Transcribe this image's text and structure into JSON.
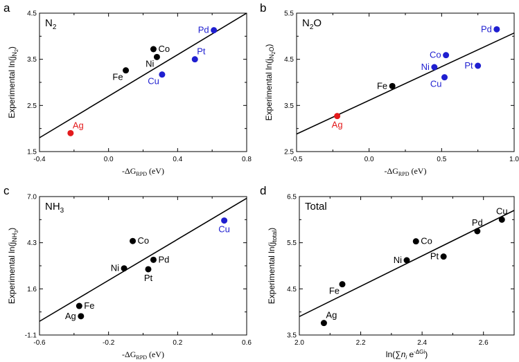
{
  "chart_data": [
    {
      "type": "scatter",
      "panel_letter": "a",
      "title_main": "N",
      "title_sub": "2",
      "xlabel_prefix": "-ΔG",
      "xlabel_sub": "RPD",
      "xlabel_suffix": " (eV)",
      "ylabel_prefix": "Experimental ln(j",
      "ylabel_sub": "N",
      "ylabel_subsub": "2",
      "ylabel_suffix": ")",
      "xlim": [
        -0.4,
        0.8
      ],
      "ylim": [
        1.5,
        4.5
      ],
      "xticks": [
        -0.4,
        0.0,
        0.4,
        0.8
      ],
      "xtick_labels": [
        "-0.4",
        "0.0",
        "0.4",
        "0.8"
      ],
      "yticks": [
        1.5,
        2.5,
        3.5,
        4.5
      ],
      "ytick_labels": [
        "1.5",
        "2.5",
        "3.5",
        "4.5"
      ],
      "fit_line": [
        [
          -0.4,
          1.8
        ],
        [
          0.8,
          4.5
        ]
      ],
      "points": [
        {
          "label": "Ag",
          "x": -0.22,
          "y": 1.9,
          "color": "#e31a1c",
          "label_pos": "above-right"
        },
        {
          "label": "Fe",
          "x": 0.1,
          "y": 3.26,
          "color": "#000000",
          "label_pos": "below-left"
        },
        {
          "label": "Co",
          "x": 0.26,
          "y": 3.72,
          "color": "#000000",
          "label_pos": "right"
        },
        {
          "label": "Ni",
          "x": 0.28,
          "y": 3.55,
          "color": "#000000",
          "label_pos": "below-left"
        },
        {
          "label": "Cu",
          "x": 0.31,
          "y": 3.17,
          "color": "#1f1fd0",
          "label_pos": "below-left"
        },
        {
          "label": "Pt",
          "x": 0.5,
          "y": 3.5,
          "color": "#1f1fd0",
          "label_pos": "above-right"
        },
        {
          "label": "Pd",
          "x": 0.61,
          "y": 4.13,
          "color": "#1f1fd0",
          "label_pos": "left"
        }
      ]
    },
    {
      "type": "scatter",
      "panel_letter": "b",
      "title_main": "N",
      "title_sub": "2",
      "title_after": "O",
      "xlabel_prefix": "-ΔG",
      "xlabel_sub": "RPD",
      "xlabel_suffix": " (eV)",
      "ylabel_prefix": "Experimental ln(j",
      "ylabel_sub": "N",
      "ylabel_subsub": "2",
      "ylabel_subafter": "O",
      "ylabel_suffix": ")",
      "xlim": [
        -0.5,
        1.0
      ],
      "ylim": [
        2.5,
        5.5
      ],
      "xticks": [
        -0.5,
        0.0,
        0.5,
        1.0
      ],
      "xtick_labels": [
        "-0.5",
        "0.0",
        "0.5",
        "1.0"
      ],
      "yticks": [
        2.5,
        3.5,
        4.5,
        5.5
      ],
      "ytick_labels": [
        "2.5",
        "3.5",
        "4.5",
        "5.5"
      ],
      "fit_line": [
        [
          -0.5,
          2.88
        ],
        [
          1.0,
          5.07
        ]
      ],
      "points": [
        {
          "label": "Ag",
          "x": -0.22,
          "y": 3.27,
          "color": "#e31a1c",
          "label_pos": "below"
        },
        {
          "label": "Fe",
          "x": 0.16,
          "y": 3.92,
          "color": "#000000",
          "label_pos": "left"
        },
        {
          "label": "Ni",
          "x": 0.45,
          "y": 4.33,
          "color": "#1f1fd0",
          "label_pos": "left"
        },
        {
          "label": "Co",
          "x": 0.53,
          "y": 4.59,
          "color": "#1f1fd0",
          "label_pos": "left"
        },
        {
          "label": "Cu",
          "x": 0.52,
          "y": 4.11,
          "color": "#1f1fd0",
          "label_pos": "below-left"
        },
        {
          "label": "Pt",
          "x": 0.75,
          "y": 4.36,
          "color": "#1f1fd0",
          "label_pos": "left"
        },
        {
          "label": "Pd",
          "x": 0.88,
          "y": 5.15,
          "color": "#1f1fd0",
          "label_pos": "left"
        }
      ]
    },
    {
      "type": "scatter",
      "panel_letter": "c",
      "title_main": "NH",
      "title_sub": "3",
      "xlabel_prefix": "-ΔG",
      "xlabel_sub": "RPD",
      "xlabel_suffix": " (eV)",
      "ylabel_prefix": "Experimental ln(j",
      "ylabel_sub": "NH",
      "ylabel_subsub": "3",
      "ylabel_suffix": ")",
      "xlim": [
        -0.6,
        0.6
      ],
      "ylim": [
        -1.1,
        7.0
      ],
      "xticks": [
        -0.6,
        -0.2,
        0.2,
        0.6
      ],
      "xtick_labels": [
        "-0.6",
        "-0.2",
        "0.2",
        "0.6"
      ],
      "yticks": [
        -1.1,
        1.6,
        4.3,
        7.0
      ],
      "ytick_labels": [
        "-1.1",
        "1.6",
        "4.3",
        "7.0"
      ],
      "fit_line": [
        [
          -0.6,
          -0.3
        ],
        [
          0.6,
          6.9
        ]
      ],
      "points": [
        {
          "label": "Ag",
          "x": -0.36,
          "y": 0.0,
          "color": "#000000",
          "label_pos": "left"
        },
        {
          "label": "Fe",
          "x": -0.37,
          "y": 0.6,
          "color": "#000000",
          "label_pos": "right"
        },
        {
          "label": "Ni",
          "x": -0.11,
          "y": 2.8,
          "color": "#000000",
          "label_pos": "left"
        },
        {
          "label": "Co",
          "x": -0.06,
          "y": 4.4,
          "color": "#000000",
          "label_pos": "right"
        },
        {
          "label": "Pt",
          "x": 0.03,
          "y": 2.75,
          "color": "#000000",
          "label_pos": "below"
        },
        {
          "label": "Pd",
          "x": 0.06,
          "y": 3.3,
          "color": "#000000",
          "label_pos": "right"
        },
        {
          "label": "Cu",
          "x": 0.47,
          "y": 5.6,
          "color": "#1f1fd0",
          "label_pos": "below"
        }
      ]
    },
    {
      "type": "scatter",
      "panel_letter": "d",
      "title_main": "Total",
      "xlabel_prefix": "ln(∑",
      "xlabel_n": "n",
      "xlabel_i": "i",
      "xlabel_e": " e",
      "xlabel_sup": "-ΔGi",
      "xlabel_suffix": ")",
      "ylabel_prefix": "Experimental ln(j",
      "ylabel_sub": "total",
      "ylabel_suffix": ")",
      "xlim": [
        2.0,
        2.7
      ],
      "ylim": [
        3.5,
        6.5
      ],
      "xticks": [
        2.0,
        2.2,
        2.4,
        2.6
      ],
      "xtick_labels": [
        "2.0",
        "2.2",
        "2.4",
        "2.6"
      ],
      "yticks": [
        3.5,
        4.5,
        5.5,
        6.5
      ],
      "ytick_labels": [
        "3.5",
        "4.5",
        "5.5",
        "6.5"
      ],
      "fit_line": [
        [
          2.0,
          3.9
        ],
        [
          2.7,
          6.2
        ]
      ],
      "points": [
        {
          "label": "Ag",
          "x": 2.08,
          "y": 3.76,
          "color": "#000000",
          "label_pos": "above-right"
        },
        {
          "label": "Fe",
          "x": 2.14,
          "y": 4.6,
          "color": "#000000",
          "label_pos": "below-left"
        },
        {
          "label": "Ni",
          "x": 2.35,
          "y": 5.12,
          "color": "#000000",
          "label_pos": "left"
        },
        {
          "label": "Co",
          "x": 2.38,
          "y": 5.53,
          "color": "#000000",
          "label_pos": "right"
        },
        {
          "label": "Pt",
          "x": 2.47,
          "y": 5.2,
          "color": "#000000",
          "label_pos": "left"
        },
        {
          "label": "Pd",
          "x": 2.58,
          "y": 5.75,
          "color": "#000000",
          "label_pos": "above"
        },
        {
          "label": "Cu",
          "x": 2.66,
          "y": 6.0,
          "color": "#000000",
          "label_pos": "above"
        }
      ]
    }
  ]
}
